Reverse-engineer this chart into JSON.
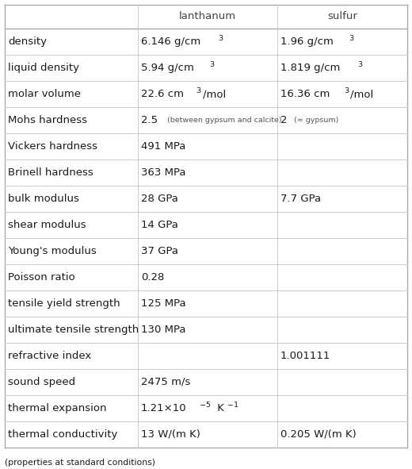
{
  "col_headers": [
    "",
    "lanthanum",
    "sulfur"
  ],
  "rows": [
    {
      "property": "density",
      "lanthanum": [
        {
          "text": "6.146 g/cm",
          "sup": "3",
          "style": "normal"
        }
      ],
      "sulfur": [
        {
          "text": "1.96 g/cm",
          "sup": "3",
          "style": "normal"
        }
      ]
    },
    {
      "property": "liquid density",
      "lanthanum": [
        {
          "text": "5.94 g/cm",
          "sup": "3",
          "style": "normal"
        }
      ],
      "sulfur": [
        {
          "text": "1.819 g/cm",
          "sup": "3",
          "style": "normal"
        }
      ]
    },
    {
      "property": "molar volume",
      "lanthanum": [
        {
          "text": "22.6 cm",
          "sup": "3",
          "extra": "/mol",
          "style": "normal"
        }
      ],
      "sulfur": [
        {
          "text": "16.36 cm",
          "sup": "3",
          "extra": "/mol",
          "style": "normal"
        }
      ]
    },
    {
      "property": "Mohs hardness",
      "lanthanum": [
        {
          "text": "2.5",
          "sup": "",
          "small": "  (between gypsum and calcite)",
          "style": "normal"
        }
      ],
      "sulfur": [
        {
          "text": "2",
          "sup": "",
          "small": "  (≈ gypsum)",
          "style": "normal"
        }
      ]
    },
    {
      "property": "Vickers hardness",
      "lanthanum": [
        {
          "text": "491 MPa",
          "sup": "",
          "style": "normal"
        }
      ],
      "sulfur": []
    },
    {
      "property": "Brinell hardness",
      "lanthanum": [
        {
          "text": "363 MPa",
          "sup": "",
          "style": "normal"
        }
      ],
      "sulfur": []
    },
    {
      "property": "bulk modulus",
      "lanthanum": [
        {
          "text": "28 GPa",
          "sup": "",
          "style": "normal"
        }
      ],
      "sulfur": [
        {
          "text": "7.7 GPa",
          "sup": "",
          "style": "normal"
        }
      ]
    },
    {
      "property": "shear modulus",
      "lanthanum": [
        {
          "text": "14 GPa",
          "sup": "",
          "style": "normal"
        }
      ],
      "sulfur": []
    },
    {
      "property": "Young's modulus",
      "lanthanum": [
        {
          "text": "37 GPa",
          "sup": "",
          "style": "normal"
        }
      ],
      "sulfur": []
    },
    {
      "property": "Poisson ratio",
      "lanthanum": [
        {
          "text": "0.28",
          "sup": "",
          "style": "normal"
        }
      ],
      "sulfur": []
    },
    {
      "property": "tensile yield strength",
      "lanthanum": [
        {
          "text": "125 MPa",
          "sup": "",
          "style": "normal"
        }
      ],
      "sulfur": []
    },
    {
      "property": "ultimate tensile strength",
      "lanthanum": [
        {
          "text": "130 MPa",
          "sup": "",
          "style": "normal"
        }
      ],
      "sulfur": []
    },
    {
      "property": "refractive index",
      "lanthanum": [],
      "sulfur": [
        {
          "text": "1.001111",
          "sup": "",
          "style": "normal"
        }
      ]
    },
    {
      "property": "sound speed",
      "lanthanum": [
        {
          "text": "2475 m/s",
          "sup": "",
          "style": "normal"
        }
      ],
      "sulfur": []
    },
    {
      "property": "thermal expansion",
      "lanthanum": [
        {
          "text": "1.21×10",
          "sup": "−5",
          "extra": " K",
          "sup2": "−1",
          "style": "normal"
        }
      ],
      "sulfur": []
    },
    {
      "property": "thermal conductivity",
      "lanthanum": [
        {
          "text": "13 W/(m K)",
          "sup": "",
          "style": "normal"
        }
      ],
      "sulfur": [
        {
          "text": "0.205 W/(m K)",
          "sup": "",
          "style": "normal"
        }
      ]
    }
  ],
  "footer": "(properties at standard conditions)",
  "bg_color": "#ffffff",
  "line_color_outer": "#aaaaaa",
  "line_color_inner": "#cccccc",
  "text_color": "#1a1a1a",
  "small_text_color": "#555555",
  "header_text_color": "#444444"
}
